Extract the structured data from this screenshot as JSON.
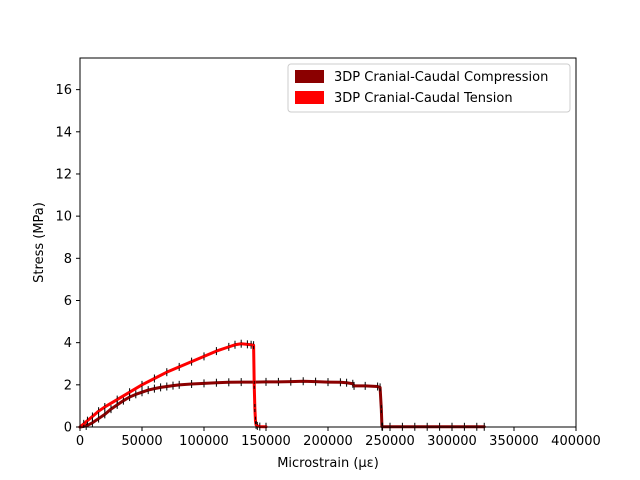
{
  "chart_data": {
    "type": "line",
    "title": "",
    "xlabel": "Microstrain (με)",
    "ylabel": "Stress (MPa)",
    "xlim": [
      0,
      400000
    ],
    "ylim": [
      0,
      17.5
    ],
    "xticks": [
      0,
      50000,
      100000,
      150000,
      200000,
      250000,
      300000,
      350000,
      400000
    ],
    "xtick_labels": [
      "0",
      "50000",
      "100000",
      "150000",
      "200000",
      "250000",
      "300000",
      "350000",
      "400000"
    ],
    "yticks": [
      0,
      2,
      4,
      6,
      8,
      10,
      12,
      14,
      16
    ],
    "ytick_labels": [
      "0",
      "2",
      "4",
      "6",
      "8",
      "10",
      "12",
      "14",
      "16"
    ],
    "grid": false,
    "legend_position": "top-right",
    "series": [
      {
        "name": "3DP Cranial-Caudal Compression",
        "color": "#8b0000",
        "x": [
          0,
          5000,
          10000,
          15000,
          20000,
          25000,
          30000,
          35000,
          40000,
          45000,
          50000,
          55000,
          60000,
          65000,
          70000,
          75000,
          80000,
          90000,
          100000,
          110000,
          120000,
          130000,
          140000,
          150000,
          160000,
          170000,
          180000,
          190000,
          200000,
          210000,
          215000,
          220000,
          221000,
          230000,
          240000,
          242000,
          243000,
          243500,
          244000,
          250000,
          260000,
          270000,
          280000,
          290000,
          300000,
          310000,
          320000,
          326000
        ],
        "y": [
          0,
          0.05,
          0.2,
          0.4,
          0.6,
          0.85,
          1.05,
          1.25,
          1.42,
          1.55,
          1.65,
          1.75,
          1.82,
          1.88,
          1.92,
          1.96,
          2.0,
          2.04,
          2.07,
          2.1,
          2.12,
          2.13,
          2.13,
          2.14,
          2.14,
          2.15,
          2.17,
          2.15,
          2.13,
          2.12,
          2.1,
          2.05,
          1.95,
          1.95,
          1.92,
          1.88,
          0.85,
          0.02,
          0.01,
          0.01,
          0.01,
          0.01,
          0.01,
          0.01,
          0.01,
          0.01,
          0.01,
          0.01
        ]
      },
      {
        "name": "3DP Cranial-Caudal Tension",
        "color": "#ff0000",
        "x": [
          0,
          3000,
          6000,
          10000,
          15000,
          20000,
          30000,
          40000,
          50000,
          60000,
          70000,
          80000,
          90000,
          100000,
          110000,
          120000,
          125000,
          130000,
          135000,
          138000,
          140000,
          140500,
          141000,
          141500,
          142000,
          143000,
          145000,
          150000
        ],
        "y": [
          0,
          0.15,
          0.3,
          0.5,
          0.75,
          0.95,
          1.3,
          1.65,
          2.0,
          2.3,
          2.6,
          2.85,
          3.1,
          3.35,
          3.6,
          3.8,
          3.9,
          3.95,
          3.92,
          3.9,
          3.88,
          2.0,
          0.9,
          0.3,
          0.1,
          0.05,
          0.02,
          0.01
        ]
      }
    ]
  }
}
